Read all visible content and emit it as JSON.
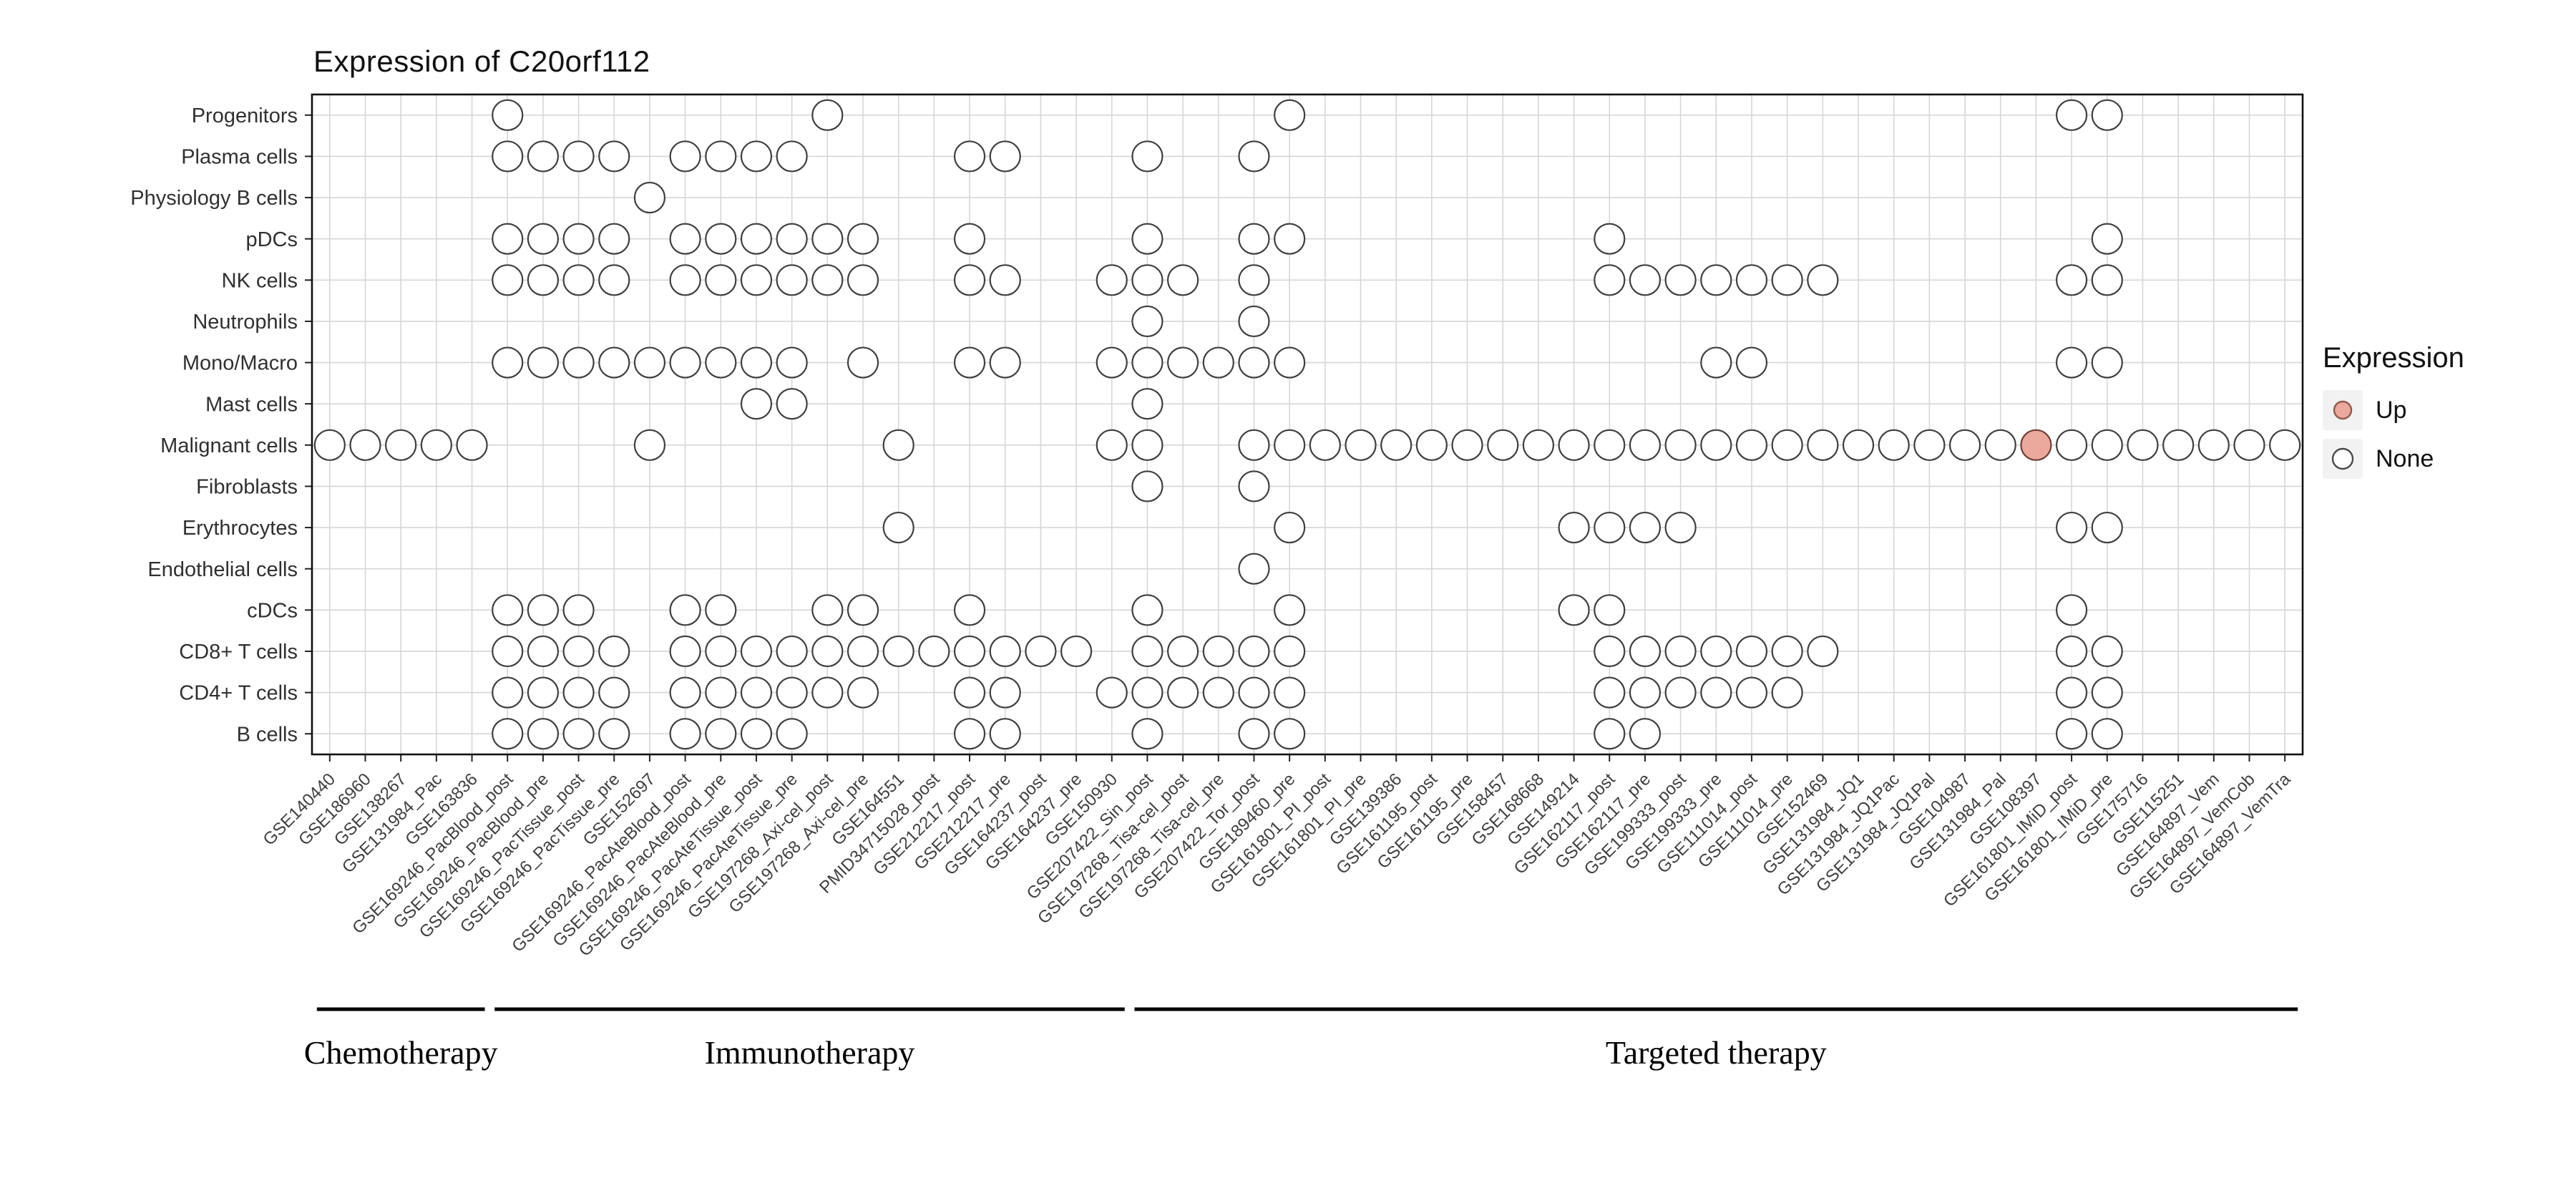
{
  "title": "Expression of C20orf112",
  "legend": {
    "title": "Expression",
    "items": [
      {
        "label": "Up",
        "fill": "#EBA89C",
        "stroke": "#8f5a4e"
      },
      {
        "label": "None",
        "fill": "#FFFFFF",
        "stroke": "#4a4a4a"
      }
    ]
  },
  "groups": [
    {
      "label": "Chemotherapy",
      "start": 1,
      "end": 5
    },
    {
      "label": "Immunotherapy",
      "start": 6,
      "end": 23
    },
    {
      "label": "Targeted therapy",
      "start": 24,
      "end": 56
    }
  ],
  "chart_data": {
    "type": "scatter",
    "subtype": "presence-dot-matrix",
    "title": "Expression of C20orf112",
    "legend_title": "Expression",
    "legend_values": [
      "Up",
      "None"
    ],
    "x_categories": [
      "GSE140440",
      "GSE186960",
      "GSE138267",
      "GSE131984_Pac",
      "GSE163836",
      "GSE169246_PacBlood_post",
      "GSE169246_PacBlood_pre",
      "GSE169246_PacTissue_post",
      "GSE169246_PacTissue_pre",
      "GSE152697",
      "GSE169246_PacAteBlood_post",
      "GSE169246_PacAteBlood_pre",
      "GSE169246_PacAteTissue_post",
      "GSE169246_PacAteTissue_pre",
      "GSE197268_Axi-cel_post",
      "GSE197268_Axi-cel_pre",
      "GSE164551",
      "PMID34715028_post",
      "GSE212217_post",
      "GSE212217_pre",
      "GSE164237_post",
      "GSE164237_pre",
      "GSE150930",
      "GSE207422_Sin_post",
      "GSE197268_Tisa-cel_post",
      "GSE197268_Tisa-cel_pre",
      "GSE207422_Tor_post",
      "GSE189460_pre",
      "GSE161801_PI_post",
      "GSE161801_PI_pre",
      "GSE139386",
      "GSE161195_post",
      "GSE161195_pre",
      "GSE158457",
      "GSE168668",
      "GSE149214",
      "GSE162117_post",
      "GSE162117_pre",
      "GSE199333_post",
      "GSE199333_pre",
      "GSE111014_post",
      "GSE111014_pre",
      "GSE152469",
      "GSE131984_JQ1",
      "GSE131984_JQ1Pac",
      "GSE131984_JQ1Pal",
      "GSE104987",
      "GSE131984_Pal",
      "GSE108397",
      "GSE161801_IMiD_post",
      "GSE161801_IMiD_pre",
      "GSE175716",
      "GSE115251",
      "GSE164897_Vem",
      "GSE164897_VemCob",
      "GSE164897_VemTra"
    ],
    "y_categories": [
      "Progenitors",
      "Plasma cells",
      "Physiology B cells",
      "pDCs",
      "NK cells",
      "Neutrophils",
      "Mono/Macro",
      "Mast cells",
      "Malignant cells",
      "Fibroblasts",
      "Erythrocytes",
      "Endothelial cells",
      "cDCs",
      "CD8+ T cells",
      "CD4+ T cells",
      "B cells"
    ],
    "cells": {
      "Progenitors": [
        6,
        15,
        28,
        50,
        51
      ],
      "Plasma cells": [
        6,
        7,
        8,
        9,
        11,
        12,
        13,
        14,
        19,
        20,
        24,
        27
      ],
      "Physiology B cells": [
        10
      ],
      "pDCs": [
        6,
        7,
        8,
        9,
        11,
        12,
        13,
        14,
        15,
        16,
        19,
        24,
        27,
        28,
        37,
        51
      ],
      "NK cells": [
        6,
        7,
        8,
        9,
        11,
        12,
        13,
        14,
        15,
        16,
        19,
        20,
        23,
        24,
        25,
        27,
        37,
        38,
        39,
        40,
        41,
        42,
        43,
        50,
        51
      ],
      "Neutrophils": [
        24,
        27
      ],
      "Mono/Macro": [
        6,
        7,
        8,
        9,
        10,
        11,
        12,
        13,
        14,
        16,
        19,
        20,
        23,
        24,
        25,
        26,
        27,
        28,
        40,
        41,
        50,
        51
      ],
      "Mast cells": [
        13,
        14,
        24
      ],
      "Malignant cells": [
        1,
        2,
        3,
        4,
        5,
        10,
        17,
        23,
        24,
        27,
        28,
        29,
        30,
        31,
        32,
        33,
        34,
        35,
        36,
        37,
        38,
        39,
        40,
        41,
        42,
        43,
        44,
        45,
        46,
        47,
        48,
        49,
        50,
        51,
        52,
        53,
        54,
        55,
        56
      ],
      "Fibroblasts": [
        24,
        27
      ],
      "Erythrocytes": [
        17,
        28,
        36,
        37,
        38,
        39,
        50,
        51
      ],
      "Endothelial cells": [
        27
      ],
      "cDCs": [
        6,
        7,
        8,
        11,
        12,
        15,
        16,
        19,
        24,
        28,
        36,
        37,
        50
      ],
      "CD8+ T cells": [
        6,
        7,
        8,
        9,
        11,
        12,
        13,
        14,
        15,
        16,
        17,
        18,
        19,
        20,
        21,
        22,
        24,
        25,
        26,
        27,
        28,
        37,
        38,
        39,
        40,
        41,
        42,
        43,
        50,
        51
      ],
      "CD4+ T cells": [
        6,
        7,
        8,
        9,
        11,
        12,
        13,
        14,
        15,
        16,
        19,
        20,
        23,
        24,
        25,
        26,
        27,
        28,
        37,
        38,
        39,
        40,
        41,
        42,
        50,
        51
      ],
      "B cells": [
        6,
        7,
        8,
        9,
        11,
        12,
        13,
        14,
        19,
        20,
        24,
        27,
        28,
        37,
        38,
        50,
        51
      ]
    },
    "up_cells": [
      {
        "row": "Malignant cells",
        "column": "GSE108397"
      }
    ]
  }
}
